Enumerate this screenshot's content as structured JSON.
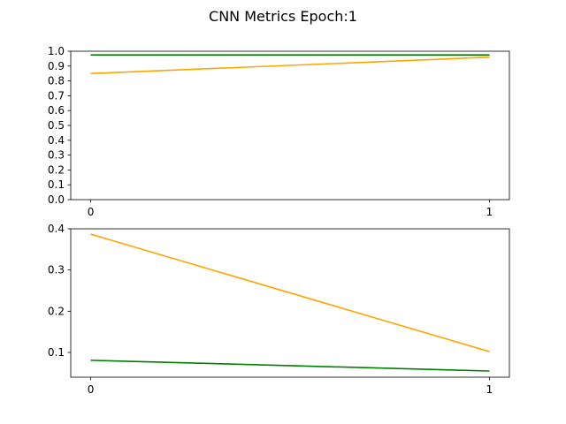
{
  "chart_data": {
    "title": "CNN Metrics Epoch:1",
    "subplots": [
      {
        "type": "line",
        "xlabel": "",
        "ylabel": "",
        "x": [
          0,
          1
        ],
        "xticks": [
          "0",
          "1"
        ],
        "ylim": [
          0,
          1.0
        ],
        "yticks": [
          "0.0",
          "0.1",
          "0.2",
          "0.3",
          "0.4",
          "0.5",
          "0.6",
          "0.7",
          "0.8",
          "0.9",
          "1.0"
        ],
        "grid": false,
        "series": [
          {
            "color": "#ffa500",
            "values": [
              0.85,
              0.96
            ]
          },
          {
            "color": "#008000",
            "values": [
              0.975,
              0.975
            ]
          }
        ]
      },
      {
        "type": "line",
        "xlabel": "",
        "ylabel": "",
        "x": [
          0,
          1
        ],
        "xticks": [
          "0",
          "1"
        ],
        "ylim": [
          0.04,
          0.4
        ],
        "yticks": [
          "0.1",
          "0.2",
          "0.3",
          "0.4"
        ],
        "grid": false,
        "series": [
          {
            "color": "#ffa500",
            "values": [
              0.387,
              0.102
            ]
          },
          {
            "color": "#008000",
            "values": [
              0.081,
              0.055
            ]
          }
        ]
      }
    ]
  }
}
